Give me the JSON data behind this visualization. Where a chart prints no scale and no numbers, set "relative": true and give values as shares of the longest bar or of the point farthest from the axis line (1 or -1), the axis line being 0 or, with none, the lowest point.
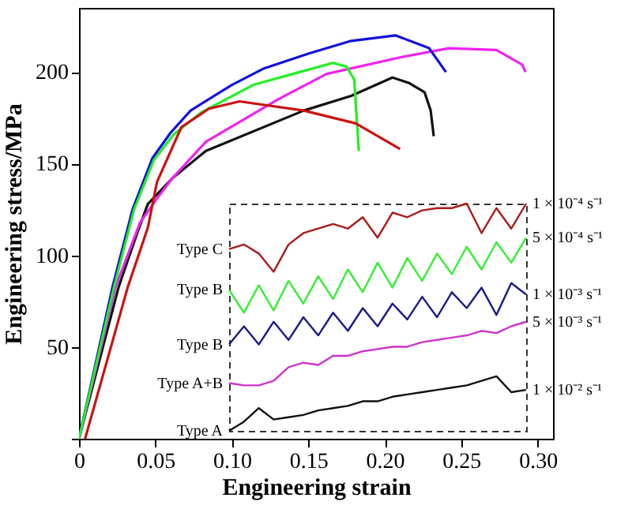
{
  "chart_data": [
    {
      "type": "line",
      "xlabel": "Engineering strain",
      "ylabel": "Engineering stress/MPa",
      "xlim": [
        0,
        0.31
      ],
      "ylim": [
        0,
        235
      ],
      "xticks": [
        {
          "value": 0,
          "label": "0"
        },
        0.05,
        {
          "value": 0.1,
          "label": "0.10"
        },
        0.15,
        {
          "value": 0.2,
          "label": "0.20"
        },
        0.25,
        {
          "value": 0.3,
          "label": "0.30"
        }
      ],
      "yticks": [
        {
          "value": 0,
          "label": null
        },
        50,
        100,
        150,
        200
      ],
      "grid": false,
      "legend": false,
      "series": [
        {
          "color": "#111111",
          "x": [
            0,
            0.026,
            0.038,
            0.045,
            0.061,
            0.083,
            0.147,
            0.178,
            0.205,
            0.216,
            0.226,
            0.23,
            0.232
          ],
          "values": [
            0,
            83,
            112,
            128,
            142,
            157,
            179,
            187,
            197,
            194,
            189,
            179,
            165
          ]
        },
        {
          "color": "#ee22ee",
          "x": [
            0,
            0.024,
            0.04,
            0.051,
            0.061,
            0.083,
            0.13,
            0.162,
            0.21,
            0.242,
            0.273,
            0.29,
            0.292
          ],
          "values": [
            0,
            83,
            118,
            131,
            142,
            162,
            185,
            199,
            208,
            213,
            212,
            204,
            200
          ]
        },
        {
          "color": "#1111dd",
          "x": [
            0,
            0.022,
            0.035,
            0.048,
            0.06,
            0.073,
            0.1,
            0.121,
            0.15,
            0.178,
            0.207,
            0.229,
            0.24
          ],
          "values": [
            0,
            83,
            125,
            153,
            167,
            179,
            193,
            202,
            210,
            217,
            220,
            213,
            200
          ]
        },
        {
          "color": "#22ee22",
          "x": [
            0,
            0.023,
            0.036,
            0.049,
            0.062,
            0.08,
            0.114,
            0.14,
            0.166,
            0.175,
            0.18,
            0.183
          ],
          "values": [
            0,
            83,
            125,
            152,
            166,
            178,
            193,
            199,
            205,
            203,
            196,
            157
          ]
        },
        {
          "color": "#cc1111",
          "x": [
            0.004,
            0.032,
            0.045,
            0.051,
            0.067,
            0.085,
            0.105,
            0.147,
            0.181,
            0.21
          ],
          "values": [
            0,
            83,
            115,
            140,
            170,
            180,
            184,
            179,
            172,
            158
          ]
        }
      ]
    },
    {
      "type": "line",
      "relative": true,
      "legend": false,
      "categories": [
        null,
        null,
        null,
        null,
        null,
        null,
        null,
        null,
        null,
        null,
        null,
        null,
        null,
        null,
        null,
        null,
        null,
        null,
        null,
        null,
        null
      ],
      "annotations": [
        "Type C",
        "Type B",
        "Type B",
        "Type A+B",
        "Type A"
      ],
      "series": [
        {
          "name": "1 × 10⁻⁴ s⁻¹",
          "color": "#aa1a1a",
          "values": [
            0.8,
            0.82,
            0.78,
            0.7,
            0.82,
            0.87,
            0.89,
            0.91,
            0.89,
            0.94,
            0.85,
            0.96,
            0.94,
            0.97,
            0.98,
            0.98,
            1.0,
            0.87,
            0.98,
            0.89,
            1.0
          ]
        },
        {
          "name": "5 × 10⁻⁴ s⁻¹",
          "color": "#33ee33",
          "values": [
            0.62,
            0.52,
            0.64,
            0.53,
            0.66,
            0.56,
            0.68,
            0.58,
            0.71,
            0.61,
            0.74,
            0.63,
            0.76,
            0.66,
            0.78,
            0.69,
            0.81,
            0.71,
            0.83,
            0.74,
            0.85
          ]
        },
        {
          "name": "1 × 10⁻³ s⁻¹",
          "color": "#1a1a8c",
          "values": [
            0.38,
            0.46,
            0.38,
            0.48,
            0.4,
            0.5,
            0.42,
            0.52,
            0.44,
            0.54,
            0.46,
            0.56,
            0.49,
            0.59,
            0.5,
            0.61,
            0.54,
            0.63,
            0.51,
            0.65,
            0.6
          ]
        },
        {
          "name": "5 × 10⁻³ s⁻¹",
          "color": "#cc33cc",
          "values": [
            0.21,
            0.2,
            0.2,
            0.22,
            0.28,
            0.3,
            0.29,
            0.33,
            0.33,
            0.35,
            0.36,
            0.37,
            0.37,
            0.39,
            0.4,
            0.41,
            0.42,
            0.44,
            0.43,
            0.46,
            0.48
          ]
        },
        {
          "name": "1 × 10⁻² s⁻¹",
          "color": "#111111",
          "values": [
            0,
            0.04,
            0.1,
            0.05,
            0.06,
            0.07,
            0.09,
            0.1,
            0.11,
            0.13,
            0.13,
            0.15,
            0.16,
            0.17,
            0.18,
            0.19,
            0.2,
            0.22,
            0.24,
            0.17,
            0.18
          ]
        }
      ]
    }
  ]
}
